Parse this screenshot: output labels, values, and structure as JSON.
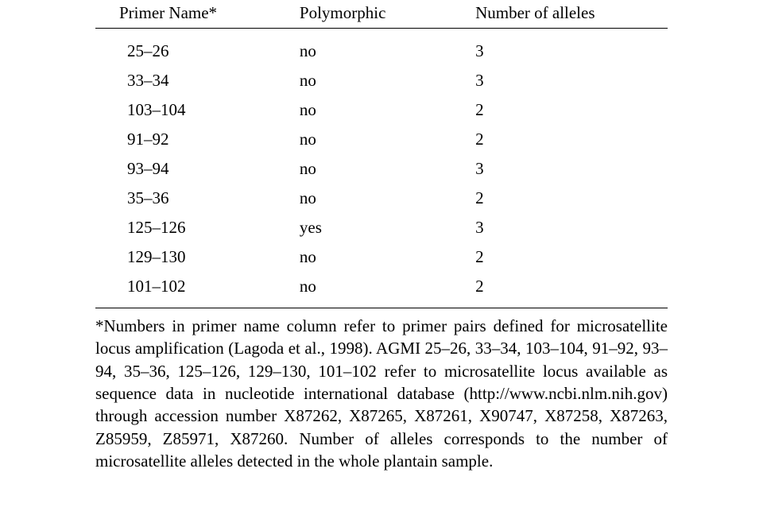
{
  "table": {
    "headers": {
      "primer": "Primer Name*",
      "polymorphic": "Polymorphic",
      "alleles": "Number of alleles"
    },
    "rows": [
      {
        "primer": "25–26",
        "polymorphic": "no",
        "alleles": "3"
      },
      {
        "primer": "33–34",
        "polymorphic": "no",
        "alleles": "3"
      },
      {
        "primer": "103–104",
        "polymorphic": "no",
        "alleles": "2"
      },
      {
        "primer": "91–92",
        "polymorphic": "no",
        "alleles": "2"
      },
      {
        "primer": "93–94",
        "polymorphic": "no",
        "alleles": "3"
      },
      {
        "primer": "35–36",
        "polymorphic": "no",
        "alleles": "2"
      },
      {
        "primer": "125–126",
        "polymorphic": "yes",
        "alleles": "3"
      },
      {
        "primer": "129–130",
        "polymorphic": "no",
        "alleles": "2"
      },
      {
        "primer": "101–102",
        "polymorphic": "no",
        "alleles": "2"
      }
    ]
  },
  "footnote": "*Numbers in primer name column refer to primer pairs defined for microsatellite locus amplification (Lagoda et al., 1998). AGMI 25–26, 33–34, 103–104, 91–92, 93–94, 35–36, 125–126, 129–130, 101–102 refer to microsatellite locus available as sequence data in nucleotide international database (http://www.ncbi.nlm.nih.gov) through accession number X87262, X87265, X87261, X90747, X87258, X87263, Z85959, Z85971, X87260. Number of alleles corresponds to the number of microsatellite alleles detected in the whole plantain sample."
}
